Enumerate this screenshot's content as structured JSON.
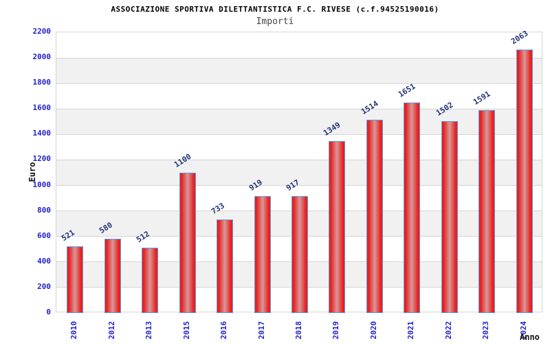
{
  "chart": {
    "title": "ASSOCIAZIONE SPORTIVA DILETTANTISTICA F.C. RIVESE (c.f.94525190016)",
    "subtitle": "Importi"
  },
  "chart_data": {
    "type": "bar",
    "title": "ASSOCIAZIONE SPORTIVA DILETTANTISTICA F.C. RIVESE (c.f.94525190016)",
    "subtitle": "Importi",
    "xlabel": "Anno",
    "ylabel": "Euro",
    "categories": [
      "2010",
      "2012",
      "2013",
      "2015",
      "2016",
      "2017",
      "2018",
      "2019",
      "2020",
      "2021",
      "2022",
      "2023",
      "2024"
    ],
    "values": [
      521,
      580,
      512,
      1100,
      733,
      919,
      917,
      1349,
      1514,
      1651,
      1502,
      1591,
      2063
    ],
    "ylim": [
      0,
      2200
    ],
    "ytick_step": 200,
    "yticks": [
      0,
      200,
      400,
      600,
      800,
      1000,
      1200,
      1400,
      1600,
      1800,
      2000,
      2200
    ],
    "grid": true,
    "band_fill": "alternating horizontal bands every 200 units",
    "legend": "none",
    "colors": {
      "bar_edge": "#e82020",
      "bar_center": "#d89898",
      "bar_border": "#58a0e8",
      "tick_label": "#2222cc",
      "value_label": "#223377",
      "band_gray": "#f1f1f1",
      "grid_line": "#d4d4d4",
      "title_color": "#000000",
      "subtitle_color": "#444444"
    }
  }
}
